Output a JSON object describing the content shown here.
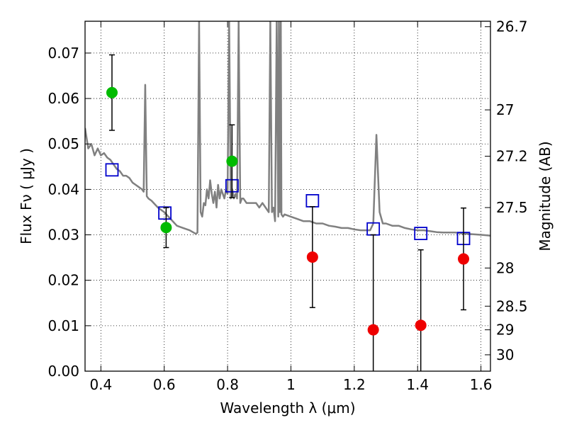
{
  "chart_data": {
    "type": "scatter",
    "title": "",
    "xlabel": "Wavelength  λ (μm)",
    "ylabel": "Flux  Fν  ( μJy )",
    "y2label": "Magnitude (AB)",
    "xlim": [
      0.35,
      1.63
    ],
    "ylim": [
      0.0,
      0.077
    ],
    "grid": true,
    "x_ticks": [
      0.4,
      0.6,
      0.8,
      1.0,
      1.2,
      1.4,
      1.6
    ],
    "x_tick_labels": [
      "0.4",
      "0.6",
      "0.8",
      "1",
      "1.2",
      "1.4",
      "1.6"
    ],
    "y_ticks": [
      0.0,
      0.01,
      0.02,
      0.03,
      0.04,
      0.05,
      0.06,
      0.07
    ],
    "y_tick_labels": [
      "0.00",
      "0.01",
      "0.02",
      "0.03",
      "0.04",
      "0.05",
      "0.06",
      "0.07"
    ],
    "y2_ticks": [
      {
        "label": "26.7",
        "flux": 0.0758
      },
      {
        "label": "27",
        "flux": 0.0575
      },
      {
        "label": "27.2",
        "flux": 0.0473
      },
      {
        "label": "27.5",
        "flux": 0.036
      },
      {
        "label": "28",
        "flux": 0.0227
      },
      {
        "label": "28.5",
        "flux": 0.0143
      },
      {
        "label": "29",
        "flux": 0.0091
      },
      {
        "label": "30",
        "flux": 0.0036
      }
    ],
    "series": [
      {
        "style": "line",
        "color": "#808080",
        "x": [
          0.35,
          0.36,
          0.37,
          0.38,
          0.39,
          0.4,
          0.41,
          0.42,
          0.43,
          0.44,
          0.45,
          0.46,
          0.47,
          0.48,
          0.49,
          0.5,
          0.51,
          0.52,
          0.53,
          0.535,
          0.54,
          0.545,
          0.55,
          0.56,
          0.58,
          0.6,
          0.62,
          0.64,
          0.66,
          0.68,
          0.7,
          0.705,
          0.71,
          0.715,
          0.72,
          0.725,
          0.73,
          0.735,
          0.74,
          0.745,
          0.75,
          0.755,
          0.76,
          0.765,
          0.77,
          0.775,
          0.78,
          0.785,
          0.79,
          0.795,
          0.8,
          0.805,
          0.81,
          0.815,
          0.82,
          0.825,
          0.83,
          0.835,
          0.84,
          0.845,
          0.85,
          0.86,
          0.87,
          0.88,
          0.89,
          0.9,
          0.91,
          0.92,
          0.93,
          0.935,
          0.94,
          0.945,
          0.95,
          0.955,
          0.96,
          0.962,
          0.965,
          0.968,
          0.97,
          0.975,
          0.98,
          1.0,
          1.02,
          1.04,
          1.06,
          1.08,
          1.1,
          1.12,
          1.14,
          1.16,
          1.18,
          1.2,
          1.22,
          1.24,
          1.25,
          1.26,
          1.27,
          1.28,
          1.29,
          1.3,
          1.32,
          1.34,
          1.36,
          1.38,
          1.4,
          1.42,
          1.44,
          1.46,
          1.48,
          1.5,
          1.52,
          1.54,
          1.56,
          1.58,
          1.6,
          1.62,
          1.63
        ],
        "y": [
          0.0535,
          0.049,
          0.05,
          0.0475,
          0.049,
          0.0475,
          0.048,
          0.047,
          0.0465,
          0.0455,
          0.0445,
          0.044,
          0.043,
          0.043,
          0.0425,
          0.0415,
          0.041,
          0.0405,
          0.04,
          0.0395,
          0.063,
          0.0385,
          0.038,
          0.0375,
          0.036,
          0.035,
          0.0335,
          0.032,
          0.0315,
          0.031,
          0.0302,
          0.0305,
          0.077,
          0.035,
          0.034,
          0.037,
          0.0365,
          0.04,
          0.038,
          0.042,
          0.039,
          0.037,
          0.0395,
          0.036,
          0.041,
          0.038,
          0.04,
          0.039,
          0.038,
          0.04,
          0.039,
          0.077,
          0.038,
          0.04,
          0.038,
          0.039,
          0.038,
          0.077,
          0.037,
          0.038,
          0.038,
          0.037,
          0.037,
          0.037,
          0.037,
          0.036,
          0.037,
          0.036,
          0.035,
          0.077,
          0.035,
          0.036,
          0.033,
          0.077,
          0.034,
          0.077,
          0.035,
          0.077,
          0.0345,
          0.034,
          0.0345,
          0.034,
          0.0335,
          0.033,
          0.033,
          0.0325,
          0.0325,
          0.032,
          0.0318,
          0.0315,
          0.0315,
          0.0312,
          0.031,
          0.031,
          0.031,
          0.0325,
          0.052,
          0.035,
          0.0325,
          0.0325,
          0.032,
          0.032,
          0.0315,
          0.0312,
          0.031,
          0.031,
          0.0308,
          0.0306,
          0.0305,
          0.0305,
          0.0305,
          0.0303,
          0.0302,
          0.0301,
          0.03,
          0.0299,
          0.0298
        ]
      },
      {
        "style": "open-square",
        "color": "#0000cc",
        "x": [
          0.435,
          0.602,
          0.814,
          1.068,
          1.26,
          1.41,
          1.545
        ],
        "y": [
          0.0443,
          0.0348,
          0.0408,
          0.0375,
          0.0313,
          0.0303,
          0.0292
        ]
      },
      {
        "style": "filled-circle",
        "color": "#00bb00",
        "x": [
          0.435,
          0.606,
          0.814
        ],
        "y": [
          0.0613,
          0.0316,
          0.0462
        ],
        "yerr_low": [
          0.0083,
          0.0044,
          0.008
        ],
        "yerr_high": [
          0.0083,
          0.0044,
          0.008
        ]
      },
      {
        "style": "filled-circle",
        "color": "#ee0000",
        "x": [
          1.068,
          1.26,
          1.41,
          1.545
        ],
        "y": [
          0.0251,
          0.0091,
          0.0101,
          0.0247
        ],
        "yerr_low": [
          0.0111,
          0.0091,
          0.0101,
          0.0112
        ],
        "yerr_high": [
          0.0111,
          0.0209,
          0.0166,
          0.0112
        ]
      }
    ]
  }
}
